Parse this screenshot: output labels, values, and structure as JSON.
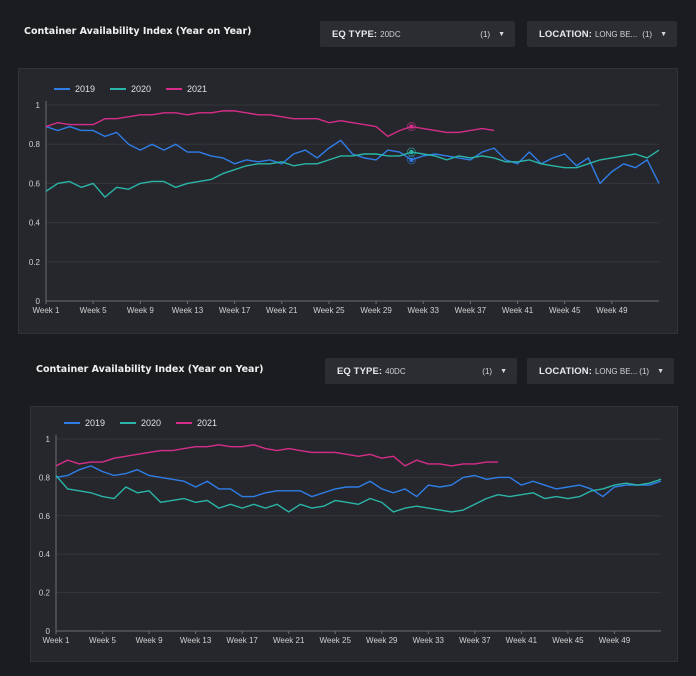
{
  "dashboard": [
    {
      "title": "Container Availability Index (Year on Year)",
      "filters": [
        {
          "label": "EQ TYPE:",
          "value": "20DC",
          "count": "(1)"
        },
        {
          "label": "LOCATION:",
          "value": "LONG BE...",
          "count": "(1)"
        }
      ]
    },
    {
      "title": "Container Availability Index (Year on Year)",
      "filters": [
        {
          "label": "EQ TYPE:",
          "value": "40DC",
          "count": "(1)"
        },
        {
          "label": "LOCATION:",
          "value": "LONG BE...",
          "count": "(1)"
        }
      ]
    }
  ],
  "chart_data": [
    {
      "type": "line",
      "legend_position": "top-left",
      "grid": true,
      "ylim": [
        0,
        1
      ],
      "y_ticks": [
        "0",
        "0.2",
        "0.4",
        "0.6",
        "0.8",
        "1"
      ],
      "x_range": [
        1,
        53
      ],
      "x_ticks": [
        {
          "week": 1,
          "label": "Week 1"
        },
        {
          "week": 5,
          "label": "Week 5"
        },
        {
          "week": 9,
          "label": "Week 9"
        },
        {
          "week": 13,
          "label": "Week 13"
        },
        {
          "week": 17,
          "label": "Week 17"
        },
        {
          "week": 21,
          "label": "Week 21"
        },
        {
          "week": 25,
          "label": "Week 25"
        },
        {
          "week": 29,
          "label": "Week 29"
        },
        {
          "week": 33,
          "label": "Week 33"
        },
        {
          "week": 37,
          "label": "Week 37"
        },
        {
          "week": 41,
          "label": "Week 41"
        },
        {
          "week": 45,
          "label": "Week 45"
        },
        {
          "week": 49,
          "label": "Week 49"
        }
      ],
      "highlight_week": 32,
      "series": [
        {
          "name": "2019",
          "color": "#2f7ee8",
          "values": [
            0.89,
            0.87,
            0.89,
            0.87,
            0.87,
            0.84,
            0.86,
            0.8,
            0.77,
            0.8,
            0.77,
            0.8,
            0.76,
            0.76,
            0.74,
            0.73,
            0.7,
            0.72,
            0.71,
            0.72,
            0.7,
            0.75,
            0.77,
            0.73,
            0.78,
            0.82,
            0.75,
            0.73,
            0.72,
            0.77,
            0.76,
            0.72,
            0.74,
            0.75,
            0.74,
            0.73,
            0.72,
            0.76,
            0.78,
            0.72,
            0.7,
            0.76,
            0.7,
            0.73,
            0.75,
            0.69,
            0.73,
            0.6,
            0.66,
            0.7,
            0.68,
            0.72,
            0.6
          ]
        },
        {
          "name": "2020",
          "color": "#2ab5a8",
          "values": [
            0.56,
            0.6,
            0.61,
            0.58,
            0.6,
            0.53,
            0.58,
            0.57,
            0.6,
            0.61,
            0.61,
            0.58,
            0.6,
            0.61,
            0.62,
            0.65,
            0.67,
            0.69,
            0.7,
            0.7,
            0.71,
            0.69,
            0.7,
            0.7,
            0.72,
            0.74,
            0.74,
            0.75,
            0.75,
            0.74,
            0.74,
            0.76,
            0.75,
            0.74,
            0.72,
            0.74,
            0.73,
            0.74,
            0.73,
            0.71,
            0.71,
            0.72,
            0.7,
            0.69,
            0.68,
            0.68,
            0.7,
            0.72,
            0.73,
            0.74,
            0.75,
            0.73,
            0.77
          ]
        },
        {
          "name": "2021",
          "color": "#d62d8a",
          "values": [
            0.89,
            0.91,
            0.9,
            0.9,
            0.9,
            0.93,
            0.93,
            0.94,
            0.95,
            0.95,
            0.96,
            0.96,
            0.95,
            0.96,
            0.96,
            0.97,
            0.97,
            0.96,
            0.95,
            0.95,
            0.94,
            0.93,
            0.93,
            0.93,
            0.91,
            0.92,
            0.91,
            0.9,
            0.89,
            0.84,
            0.87,
            0.89,
            0.88,
            0.87,
            0.86,
            0.86,
            0.87,
            0.88,
            0.87
          ]
        }
      ]
    },
    {
      "type": "line",
      "legend_position": "top-left",
      "grid": true,
      "ylim": [
        0,
        1
      ],
      "y_ticks": [
        "0",
        "0.2",
        "0.4",
        "0.6",
        "0.8",
        "1"
      ],
      "x_range": [
        1,
        53
      ],
      "x_ticks": [
        {
          "week": 1,
          "label": "Week 1"
        },
        {
          "week": 5,
          "label": "Week 5"
        },
        {
          "week": 9,
          "label": "Week 9"
        },
        {
          "week": 13,
          "label": "Week 13"
        },
        {
          "week": 17,
          "label": "Week 17"
        },
        {
          "week": 21,
          "label": "Week 21"
        },
        {
          "week": 25,
          "label": "Week 25"
        },
        {
          "week": 29,
          "label": "Week 29"
        },
        {
          "week": 33,
          "label": "Week 33"
        },
        {
          "week": 37,
          "label": "Week 37"
        },
        {
          "week": 41,
          "label": "Week 41"
        },
        {
          "week": 45,
          "label": "Week 45"
        },
        {
          "week": 49,
          "label": "Week 49"
        }
      ],
      "series": [
        {
          "name": "2019",
          "color": "#2f7ee8",
          "values": [
            0.8,
            0.81,
            0.84,
            0.86,
            0.83,
            0.81,
            0.82,
            0.84,
            0.81,
            0.8,
            0.79,
            0.78,
            0.75,
            0.78,
            0.74,
            0.74,
            0.7,
            0.7,
            0.72,
            0.73,
            0.73,
            0.73,
            0.7,
            0.72,
            0.74,
            0.75,
            0.75,
            0.78,
            0.74,
            0.72,
            0.74,
            0.7,
            0.76,
            0.75,
            0.76,
            0.8,
            0.81,
            0.79,
            0.8,
            0.8,
            0.76,
            0.78,
            0.76,
            0.74,
            0.75,
            0.76,
            0.74,
            0.7,
            0.75,
            0.76,
            0.76,
            0.76,
            0.78
          ]
        },
        {
          "name": "2020",
          "color": "#2ab5a8",
          "values": [
            0.81,
            0.74,
            0.73,
            0.72,
            0.7,
            0.69,
            0.75,
            0.72,
            0.73,
            0.67,
            0.68,
            0.69,
            0.67,
            0.68,
            0.64,
            0.66,
            0.64,
            0.66,
            0.64,
            0.66,
            0.62,
            0.66,
            0.64,
            0.65,
            0.68,
            0.67,
            0.66,
            0.69,
            0.67,
            0.62,
            0.64,
            0.65,
            0.64,
            0.63,
            0.62,
            0.63,
            0.66,
            0.69,
            0.71,
            0.7,
            0.71,
            0.72,
            0.69,
            0.7,
            0.69,
            0.7,
            0.73,
            0.74,
            0.76,
            0.77,
            0.76,
            0.77,
            0.79
          ]
        },
        {
          "name": "2021",
          "color": "#d62d8a",
          "values": [
            0.86,
            0.89,
            0.87,
            0.88,
            0.88,
            0.9,
            0.91,
            0.92,
            0.93,
            0.94,
            0.94,
            0.95,
            0.96,
            0.96,
            0.97,
            0.96,
            0.96,
            0.97,
            0.95,
            0.94,
            0.95,
            0.94,
            0.93,
            0.93,
            0.93,
            0.92,
            0.91,
            0.92,
            0.9,
            0.91,
            0.86,
            0.89,
            0.87,
            0.87,
            0.86,
            0.87,
            0.87,
            0.88,
            0.88
          ]
        }
      ]
    }
  ]
}
